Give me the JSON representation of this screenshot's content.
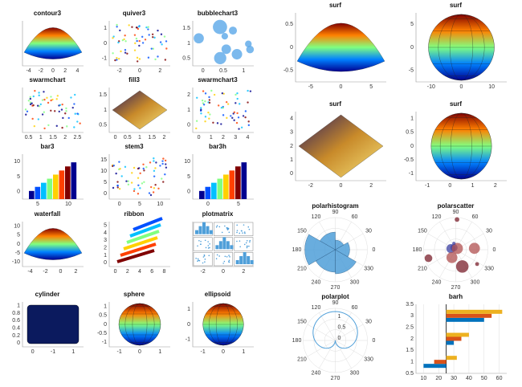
{
  "panels": [
    {
      "title": "contour3",
      "kind": "surf",
      "xticks": [
        "-4",
        "-2",
        "0",
        "2",
        "4"
      ],
      "yticks": []
    },
    {
      "title": "quiver3",
      "kind": "dots",
      "xticks": [
        "-2",
        "0",
        "2"
      ],
      "yticks": [
        "-1",
        "0",
        "1"
      ]
    },
    {
      "title": "bubblechart3",
      "kind": "bubbles",
      "xticks": [
        "0",
        "0.5",
        "1"
      ],
      "yticks": [
        "0.5",
        "1",
        "1.5"
      ]
    },
    {
      "title": "swarmchart",
      "kind": "dots",
      "xticks": [
        "0.5",
        "1",
        "1.5",
        "2",
        "2.5"
      ],
      "yticks": []
    },
    {
      "title": "fill3",
      "kind": "fill",
      "xticks": [
        "0",
        "0.5",
        "1",
        "1.5",
        "2"
      ],
      "yticks": [
        "0.5",
        "1",
        "1.5"
      ]
    },
    {
      "title": "swarmchart3",
      "kind": "dots",
      "xticks": [
        "0",
        "1",
        "2",
        "3",
        "4"
      ],
      "yticks": [
        "0",
        "1",
        "2"
      ]
    },
    {
      "title": "bar3",
      "kind": "bars",
      "xticks": [
        "5",
        "10"
      ],
      "yticks": [
        "0",
        "5",
        "10"
      ]
    },
    {
      "title": "stem3",
      "kind": "dots",
      "xticks": [
        "0",
        "5",
        "10"
      ],
      "yticks": [
        "0",
        "5",
        "10",
        "15"
      ]
    },
    {
      "title": "bar3h",
      "kind": "bars",
      "xticks": [
        "0",
        "5"
      ],
      "yticks": [
        "0",
        "5",
        "10"
      ]
    },
    {
      "title": "waterfall",
      "kind": "surf",
      "xticks": [
        "-4",
        "-2",
        "0",
        "2"
      ],
      "yticks": [
        "-10",
        "-5",
        "0",
        "5",
        "10"
      ]
    },
    {
      "title": "ribbon",
      "kind": "ribbon",
      "xticks": [
        "0",
        "2",
        "4",
        "6",
        "8"
      ],
      "yticks": [
        "0",
        "1",
        "2",
        "3",
        "4",
        "5"
      ]
    },
    {
      "title": "plotmatrix",
      "kind": "matrix",
      "xticks": [
        "-2",
        "0",
        "2"
      ],
      "yticks": []
    },
    {
      "title": "cylinder",
      "kind": "cylinder",
      "xticks": [
        "0",
        "-1",
        "1"
      ],
      "yticks": [
        "0",
        "0.2",
        "0.4",
        "0.6",
        "0.8",
        "1"
      ]
    },
    {
      "title": "sphere",
      "kind": "sphere",
      "xticks": [
        "-1",
        "0",
        "1"
      ],
      "yticks": [
        "-1",
        "-0.5",
        "0",
        "0.5",
        "1"
      ]
    },
    {
      "title": "ellipsoid",
      "kind": "ellipsoid",
      "xticks": [
        "-1",
        "0",
        "1"
      ],
      "yticks": [
        "-1",
        "0",
        "1"
      ]
    },
    {
      "title": "surf",
      "kind": "surf",
      "xticks": [
        "-5",
        "0",
        "5"
      ],
      "yticks": [
        "-0.5",
        "0",
        "0.5"
      ]
    },
    {
      "title": "surf",
      "kind": "sphere",
      "xticks": [
        "-10",
        "0",
        "10"
      ],
      "yticks": [
        "-5",
        "0",
        "5"
      ]
    },
    {
      "title": "surf",
      "kind": "fill",
      "xticks": [
        "-2",
        "0",
        "2"
      ],
      "yticks": [
        "0",
        "1",
        "2",
        "3",
        "4"
      ]
    },
    {
      "title": "surf",
      "kind": "ellipsoid",
      "xticks": [
        "-1",
        "0",
        "1",
        "2"
      ],
      "yticks": [
        "-1",
        "-0.5",
        "0",
        "0.5",
        "1"
      ]
    },
    {
      "title": "polarhistogram",
      "kind": "polarhist",
      "angles": [
        "0",
        "30",
        "60",
        "90",
        "120",
        "150",
        "180",
        "210",
        "240",
        "270",
        "300",
        "330"
      ]
    },
    {
      "title": "polarscatter",
      "kind": "polarscatter",
      "angles": [
        "0",
        "30",
        "60",
        "90",
        "120",
        "150",
        "180",
        "210",
        "240",
        "270",
        "300",
        "330"
      ]
    },
    {
      "title": "polarplot",
      "kind": "polarplot",
      "angles": [
        "0",
        "30",
        "60",
        "90",
        "120",
        "150",
        "180",
        "210",
        "240",
        "270",
        "300",
        "330"
      ],
      "rticks": [
        "0",
        "0.5",
        "1"
      ]
    },
    {
      "title": "barh",
      "kind": "barh",
      "xticks": [
        10,
        20,
        30,
        40,
        50,
        60
      ],
      "yticks": [
        0.5,
        1,
        1.5,
        2,
        2.5,
        3,
        3.5
      ],
      "xlim": [
        5,
        65
      ],
      "ylim": [
        0.5,
        3.5
      ],
      "base": 25,
      "series": [
        {
          "color": "#0072bd",
          "values": [
            10,
            30,
            50
          ]
        },
        {
          "color": "#d95319",
          "values": [
            17,
            35,
            55
          ]
        },
        {
          "color": "#edb120",
          "values": [
            32,
            40,
            62
          ]
        }
      ]
    }
  ]
}
